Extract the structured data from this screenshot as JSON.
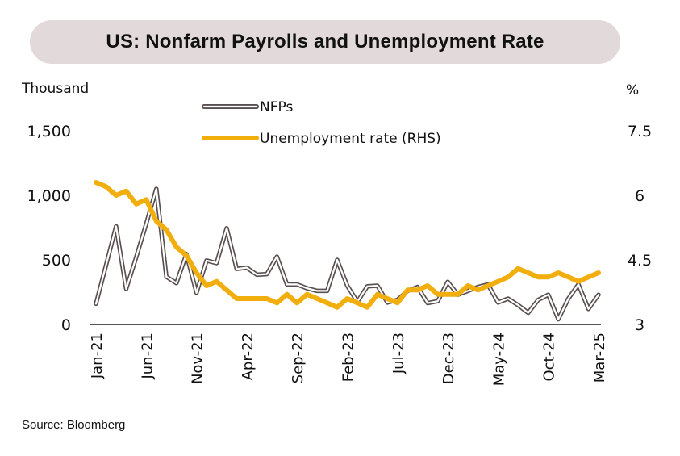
{
  "chart_data": {
    "type": "line",
    "title": "US: Nonfarm Payrolls and Unemployment Rate",
    "ylabel_left": "Thousand",
    "ylabel_right": "%",
    "source": "Source: Bloomberg",
    "ylim_left": [
      0,
      1500
    ],
    "ylim_right": [
      3,
      7.5
    ],
    "yticks_left": [
      "0",
      "500",
      "1,000",
      "1,500"
    ],
    "yticks_left_values": [
      0,
      500,
      1000,
      1500
    ],
    "yticks_right": [
      "3",
      "4.5",
      "6",
      "7.5"
    ],
    "yticks_right_values": [
      3,
      4.5,
      6,
      7.5
    ],
    "xtick_labels": [
      "Jan-21",
      "Jun-21",
      "Nov-21",
      "Apr-22",
      "Sep-22",
      "Feb-23",
      "Jul-23",
      "Dec-23",
      "May-24",
      "Oct-24",
      "Mar-25"
    ],
    "xtick_indices": [
      0,
      5,
      10,
      15,
      20,
      25,
      30,
      35,
      40,
      45,
      50
    ],
    "legend": [
      "NFPs",
      "Unemployment rate (RHS)"
    ],
    "legend_position": "top-center",
    "colors": {
      "nfp_outline": "#5a4f50",
      "unemployment": "#f2ae0c",
      "title_bg": "#e2dada",
      "axis": "#555555"
    },
    "series": [
      {
        "name": "NFPs",
        "axis": "left",
        "values": [
          160,
          460,
          760,
          275,
          520,
          780,
          1050,
          370,
          320,
          545,
          245,
          495,
          475,
          745,
          430,
          440,
          385,
          390,
          525,
          310,
          310,
          280,
          260,
          260,
          500,
          300,
          175,
          295,
          300,
          170,
          190,
          260,
          290,
          165,
          180,
          330,
          230,
          260,
          290,
          310,
          170,
          200,
          150,
          90,
          190,
          230,
          40,
          200,
          310,
          120,
          230
        ]
      },
      {
        "name": "Unemployment rate (RHS)",
        "axis": "right",
        "values": [
          6.3,
          6.2,
          6.0,
          6.1,
          5.8,
          5.9,
          5.4,
          5.2,
          4.8,
          4.6,
          4.2,
          3.9,
          4.0,
          3.8,
          3.6,
          3.6,
          3.6,
          3.6,
          3.5,
          3.7,
          3.5,
          3.7,
          3.6,
          3.5,
          3.4,
          3.6,
          3.5,
          3.4,
          3.7,
          3.6,
          3.5,
          3.8,
          3.8,
          3.9,
          3.7,
          3.7,
          3.7,
          3.9,
          3.8,
          3.9,
          4.0,
          4.1,
          4.3,
          4.2,
          4.1,
          4.1,
          4.2,
          4.1,
          4.0,
          4.1,
          4.2
        ]
      }
    ]
  }
}
